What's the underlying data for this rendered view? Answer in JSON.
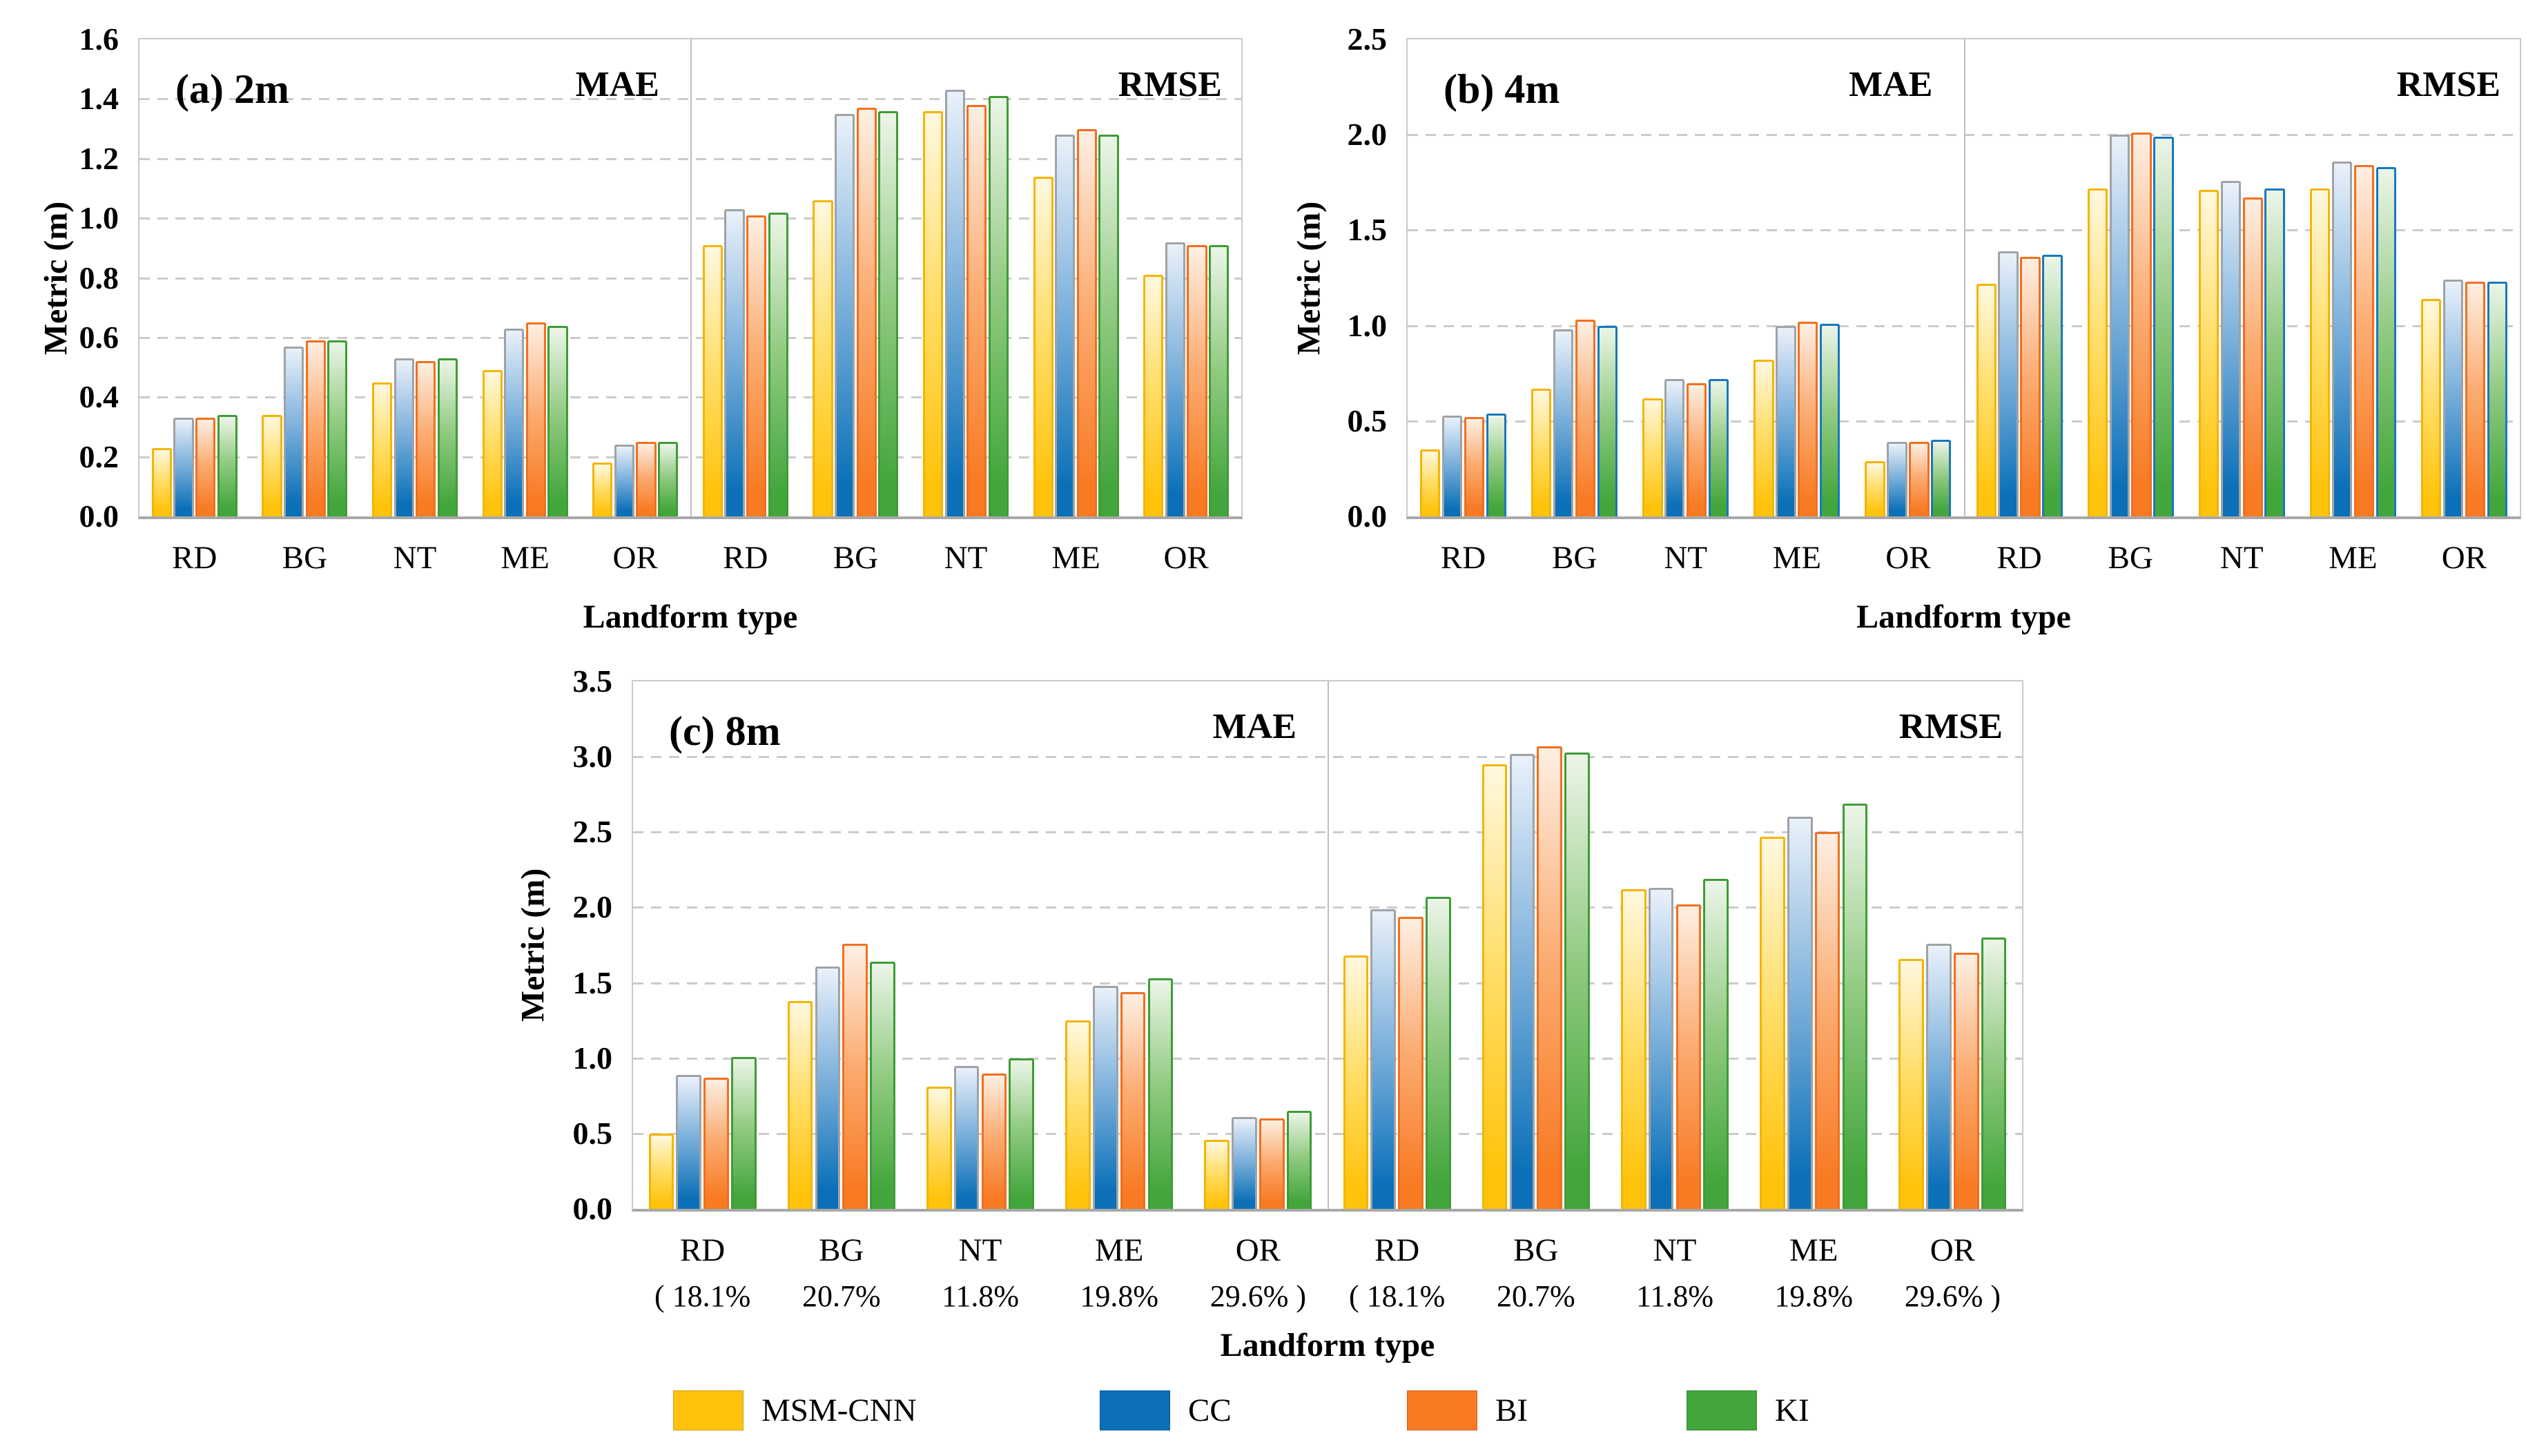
{
  "figure": {
    "background": "#ffffff",
    "x_axis_label": "Landform type",
    "y_axis_label": "Metric (m)"
  },
  "series_styles": [
    {
      "name": "MSM-CNN",
      "color": "#FFC30B",
      "mid": "#FFDE6B",
      "pale": "#FFF8DF",
      "border": "#F5B400"
    },
    {
      "name": "CC",
      "color": "#0B70B8",
      "mid": "#7FB2DC",
      "pale": "#EAF1FA",
      "border": "#9FA3A6"
    },
    {
      "name": "BI",
      "color": "#F87A23",
      "mid": "#FBAD74",
      "pale": "#FDEFE3",
      "border": "#F26F1D"
    },
    {
      "name": "KI",
      "color": "#43A63C",
      "mid": "#93CB83",
      "pale": "#ECF5E8",
      "border": "#3E9C37"
    }
  ],
  "legend": {
    "items": [
      {
        "label": "MSM-CNN",
        "color": "#FFC30B"
      },
      {
        "label": "CC",
        "color": "#0B70B8"
      },
      {
        "label": "BI",
        "color": "#F87A23"
      },
      {
        "label": "KI",
        "color": "#43A63C"
      }
    ]
  },
  "chart_data": [
    {
      "type": "bar",
      "label": "(a) 2m",
      "ylabel": "Metric (m)",
      "xlabel": "Landform type",
      "ylim": [
        0,
        1.6
      ],
      "ytick_step": 0.2,
      "ytick_decimals": 1,
      "grid": "dashed-horizontal",
      "categories": [
        "RD",
        "BG",
        "NT",
        "ME",
        "OR"
      ],
      "panels": [
        {
          "title": "MAE",
          "series": [
            {
              "name": "MSM-CNN",
              "values": [
                0.23,
                0.34,
                0.45,
                0.49,
                0.18
              ]
            },
            {
              "name": "CC",
              "values": [
                0.33,
                0.57,
                0.53,
                0.63,
                0.24
              ]
            },
            {
              "name": "BI",
              "values": [
                0.33,
                0.59,
                0.52,
                0.65,
                0.25
              ]
            },
            {
              "name": "KI",
              "values": [
                0.34,
                0.59,
                0.53,
                0.64,
                0.25
              ]
            }
          ]
        },
        {
          "title": "RMSE",
          "series": [
            {
              "name": "MSM-CNN",
              "values": [
                0.91,
                1.06,
                1.36,
                1.14,
                0.81
              ]
            },
            {
              "name": "CC",
              "values": [
                1.03,
                1.35,
                1.43,
                1.28,
                0.92
              ]
            },
            {
              "name": "BI",
              "values": [
                1.01,
                1.37,
                1.38,
                1.3,
                0.91
              ]
            },
            {
              "name": "KI",
              "values": [
                1.02,
                1.36,
                1.41,
                1.28,
                0.91
              ]
            }
          ]
        }
      ]
    },
    {
      "type": "bar",
      "label": "(b) 4m",
      "ylabel": "Metric (m)",
      "xlabel": "Landform type",
      "ylim": [
        0,
        2.5
      ],
      "ytick_step": 0.5,
      "ytick_decimals": 1,
      "grid": "dashed-horizontal",
      "ki_border": "#1878BE",
      "categories": [
        "RD",
        "BG",
        "NT",
        "ME",
        "OR"
      ],
      "panels": [
        {
          "title": "MAE",
          "series": [
            {
              "name": "MSM-CNN",
              "values": [
                0.35,
                0.67,
                0.62,
                0.82,
                0.29
              ]
            },
            {
              "name": "CC",
              "values": [
                0.53,
                0.98,
                0.72,
                1.0,
                0.39
              ]
            },
            {
              "name": "BI",
              "values": [
                0.52,
                1.03,
                0.7,
                1.02,
                0.39
              ]
            },
            {
              "name": "KI",
              "values": [
                0.54,
                1.0,
                0.72,
                1.01,
                0.4
              ]
            }
          ]
        },
        {
          "title": "RMSE",
          "series": [
            {
              "name": "MSM-CNN",
              "values": [
                1.22,
                1.72,
                1.71,
                1.72,
                1.14
              ]
            },
            {
              "name": "CC",
              "values": [
                1.39,
                2.0,
                1.76,
                1.86,
                1.24
              ]
            },
            {
              "name": "BI",
              "values": [
                1.36,
                2.01,
                1.67,
                1.84,
                1.23
              ]
            },
            {
              "name": "KI",
              "values": [
                1.37,
                1.99,
                1.72,
                1.83,
                1.23
              ]
            }
          ]
        }
      ]
    },
    {
      "type": "bar",
      "label": "(c) 8m",
      "ylabel": "Metric (m)",
      "xlabel": "Landform type",
      "ylim": [
        0,
        3.5
      ],
      "ytick_step": 0.5,
      "ytick_decimals": 1,
      "grid": "dashed-horizontal",
      "categories": [
        "RD",
        "BG",
        "NT",
        "ME",
        "OR"
      ],
      "category_sublabels": [
        "( 18.1%",
        "20.7%",
        "11.8%",
        "19.8%",
        "29.6% )"
      ],
      "panels": [
        {
          "title": "MAE",
          "series": [
            {
              "name": "MSM-CNN",
              "values": [
                0.5,
                1.38,
                0.81,
                1.25,
                0.46
              ]
            },
            {
              "name": "CC",
              "values": [
                0.89,
                1.61,
                0.95,
                1.48,
                0.61
              ]
            },
            {
              "name": "BI",
              "values": [
                0.87,
                1.76,
                0.9,
                1.44,
                0.6
              ]
            },
            {
              "name": "KI",
              "values": [
                1.01,
                1.64,
                1.0,
                1.53,
                0.65
              ]
            }
          ]
        },
        {
          "title": "RMSE",
          "series": [
            {
              "name": "MSM-CNN",
              "values": [
                1.68,
                2.95,
                2.12,
                2.47,
                1.66
              ]
            },
            {
              "name": "CC",
              "values": [
                1.99,
                3.02,
                2.13,
                2.6,
                1.76
              ]
            },
            {
              "name": "BI",
              "values": [
                1.94,
                3.07,
                2.02,
                2.5,
                1.7
              ]
            },
            {
              "name": "KI",
              "values": [
                2.07,
                3.03,
                2.19,
                2.69,
                1.8
              ]
            }
          ]
        }
      ]
    }
  ]
}
